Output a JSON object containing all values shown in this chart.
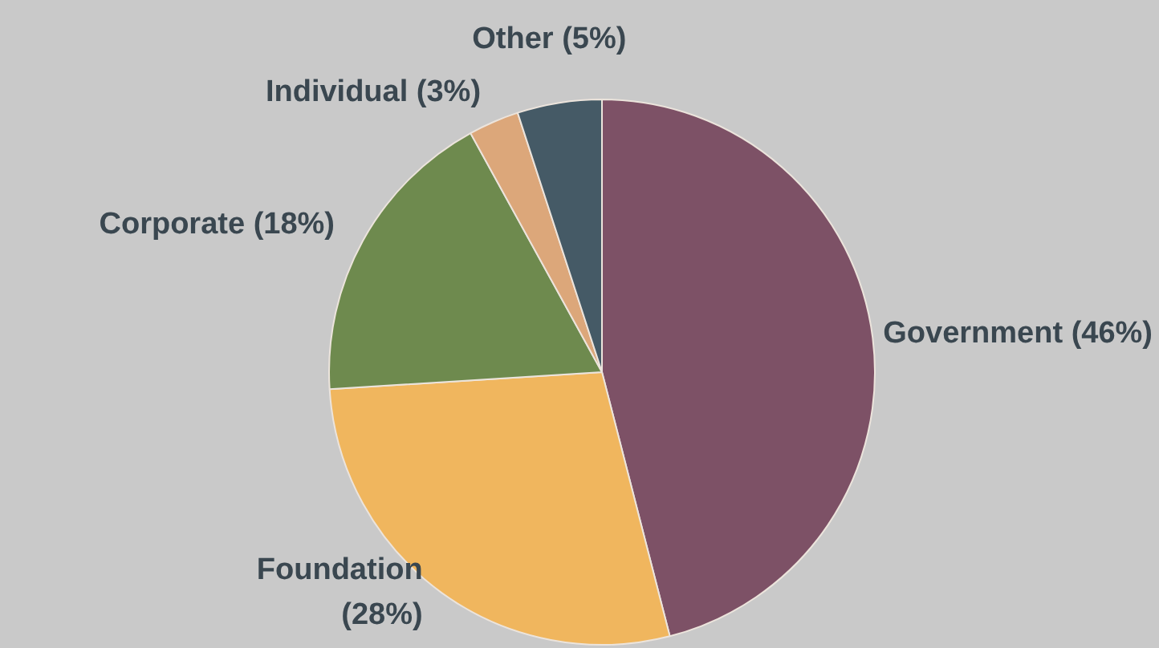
{
  "chart_data": {
    "type": "pie",
    "categories": [
      "Government",
      "Foundation",
      "Corporate",
      "Individual",
      "Other"
    ],
    "values": [
      46,
      28,
      18,
      3,
      5
    ],
    "value_labels": [
      "(46%)",
      "(28%)",
      "(18%)",
      "(3%)",
      "(5%)"
    ],
    "colors": [
      "#7d5166",
      "#f0b65e",
      "#6e8a4e",
      "#dca77a",
      "#455a66"
    ],
    "legend": false
  }
}
